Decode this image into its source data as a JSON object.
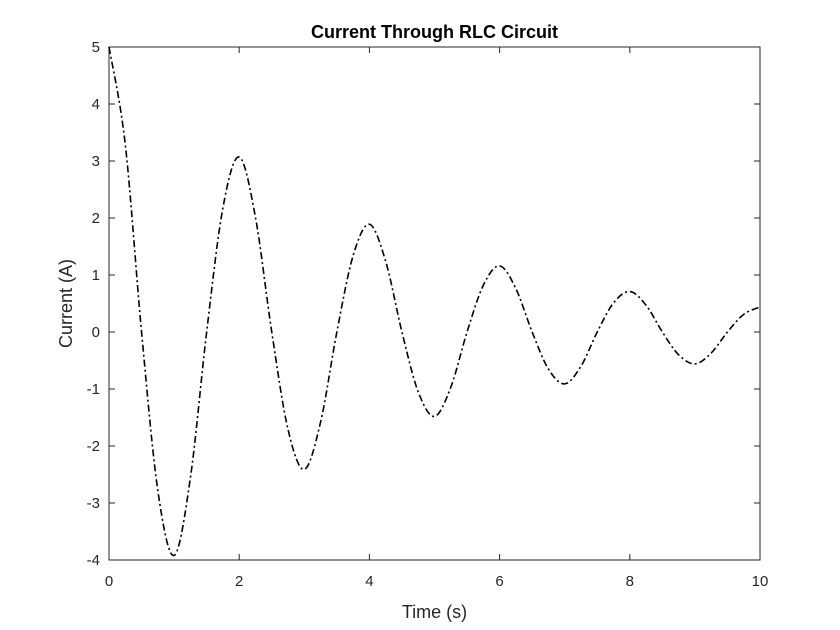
{
  "chart_data": {
    "type": "line",
    "title": "Current Through RLC Circuit",
    "xlabel": "Time (s)",
    "ylabel": "Current (A)",
    "xlim": [
      0,
      10
    ],
    "ylim": [
      -4,
      5
    ],
    "xticks": [
      0,
      2,
      4,
      6,
      8,
      10
    ],
    "yticks": [
      -4,
      -3,
      -2,
      -1,
      0,
      1,
      2,
      3,
      4,
      5
    ],
    "grid": false,
    "line_style": "dash-dot",
    "line_color": "#000000",
    "series": [
      {
        "x": [
          0,
          0.25,
          0.5,
          0.75,
          1,
          1.25,
          1.5,
          1.75,
          2,
          2.25,
          2.5,
          2.75,
          3,
          3.25,
          3.5,
          3.75,
          4,
          4.25,
          4.5,
          4.75,
          5,
          5.25,
          5.5,
          5.75,
          6,
          6.25,
          6.5,
          6.75,
          7,
          7.25,
          7.5,
          7.75,
          8,
          8.25,
          8.5,
          8.75,
          9,
          9.25,
          9.5,
          9.75,
          10
        ],
        "values": [
          5.0,
          3.29,
          0.0,
          -2.78,
          -3.92,
          -2.56,
          0.0,
          2.18,
          3.07,
          2.01,
          0.0,
          -1.71,
          -2.41,
          -1.58,
          0.0,
          1.34,
          1.89,
          1.24,
          0.0,
          -1.05,
          -1.48,
          -0.97,
          0.0,
          0.82,
          1.16,
          0.76,
          0.0,
          -0.65,
          -0.91,
          -0.6,
          0.0,
          0.51,
          0.71,
          0.47,
          0.0,
          -0.4,
          -0.56,
          -0.37,
          0.0,
          0.31,
          0.44
        ]
      }
    ]
  }
}
